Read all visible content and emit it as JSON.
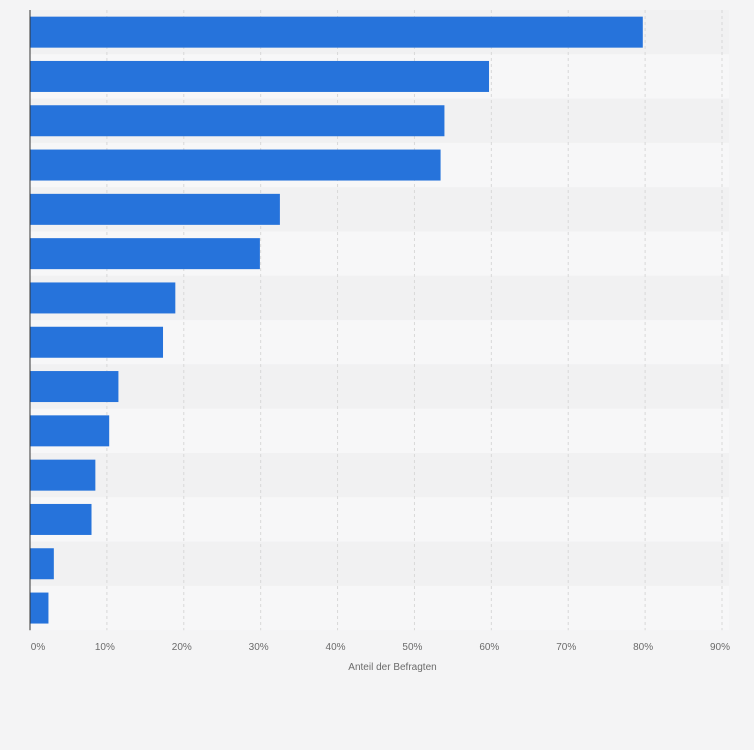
{
  "chart_data": {
    "type": "bar",
    "orientation": "horizontal",
    "categories": [
      "",
      "",
      "",
      "",
      "",
      "",
      "",
      "",
      "",
      "",
      "",
      "",
      "",
      ""
    ],
    "values": [
      79.7,
      59.7,
      53.9,
      53.4,
      32.5,
      29.9,
      18.9,
      17.3,
      11.5,
      10.3,
      8.5,
      8.0,
      3.1,
      2.4
    ],
    "xlabel": "Anteil der Befragten",
    "ylabel": "",
    "xlim": [
      0,
      90
    ],
    "x_ticks": [
      "0%",
      "10%",
      "20%",
      "30%",
      "40%",
      "50%",
      "60%",
      "70%",
      "80%",
      "90%"
    ],
    "grid": true,
    "colors": {
      "bar": "#2673db",
      "background": "#f4f4f5",
      "row_light": "#f7f7f8",
      "row_dark": "#f1f1f2",
      "grid": "#d8d8d8",
      "axis": "#333333",
      "text": "#6b6b6b"
    }
  }
}
